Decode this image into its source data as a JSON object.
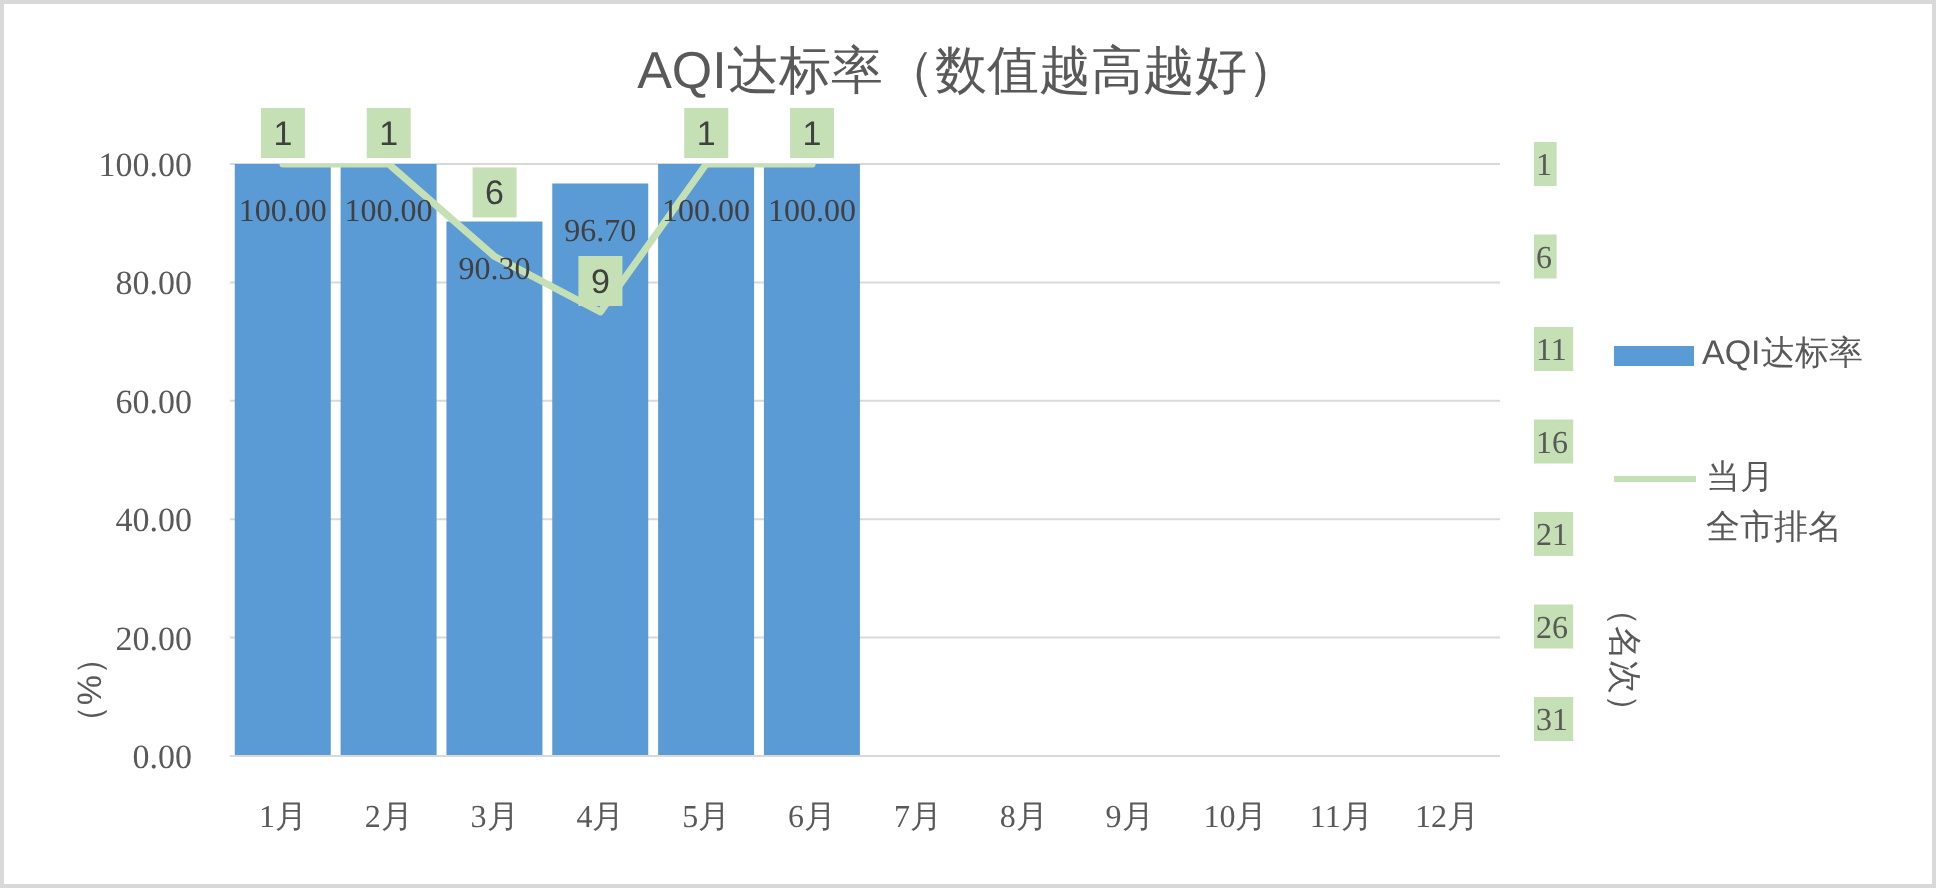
{
  "chart_data": {
    "type": "bar",
    "title": "AQI达标率（数值越高越好）",
    "ylabel": "（%）",
    "y2label": "（名次）",
    "categories": [
      "1月",
      "2月",
      "3月",
      "4月",
      "5月",
      "6月",
      "7月",
      "8月",
      "9月",
      "10月",
      "11月",
      "12月"
    ],
    "series": [
      {
        "name": "AQI达标率",
        "color": "#5b9bd5",
        "values": [
          100,
          100,
          90.3,
          96.7,
          100,
          100,
          null,
          null,
          null,
          null,
          null,
          null
        ],
        "value_labels": [
          "100.00",
          "100.00",
          "90.30",
          "96.70",
          "100.00",
          "100.00",
          null,
          null,
          null,
          null,
          null,
          null
        ]
      },
      {
        "name": "当月全市排名",
        "type": "line",
        "axis": "y2",
        "color": "#c5e0b4",
        "values": [
          1,
          1,
          6,
          9,
          1,
          1,
          null,
          null,
          null,
          null,
          null,
          null
        ],
        "value_labels": [
          "1",
          "1",
          "6",
          "9",
          "1",
          "1",
          null,
          null,
          null,
          null,
          null,
          null
        ]
      }
    ],
    "ylim": [
      0,
      100
    ],
    "yticks": [
      {
        "value": 0,
        "label": "0.00"
      },
      {
        "value": 20,
        "label": "20.00"
      },
      {
        "value": 40,
        "label": "40.00"
      },
      {
        "value": 60,
        "label": "60.00"
      },
      {
        "value": 80,
        "label": "80.00"
      },
      {
        "value": 100,
        "label": "100.00"
      }
    ],
    "y2lim": [
      33,
      1
    ],
    "y2ticks": [
      1,
      6,
      11,
      16,
      21,
      26,
      31
    ],
    "grid": "y",
    "legend": "right",
    "marker": "none",
    "line_style": "solid"
  }
}
